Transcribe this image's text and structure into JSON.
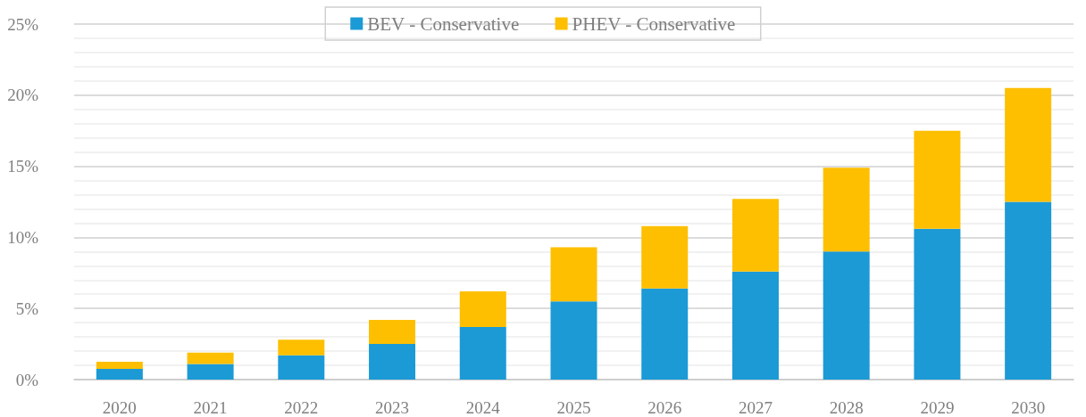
{
  "chart_data": {
    "type": "bar",
    "stacked": true,
    "categories": [
      "2020",
      "2021",
      "2022",
      "2023",
      "2024",
      "2025",
      "2026",
      "2027",
      "2028",
      "2029",
      "2030"
    ],
    "series": [
      {
        "name": "BEV - Conservative",
        "color": "#1b9ad6",
        "values": [
          0.75,
          1.1,
          1.7,
          2.5,
          3.7,
          5.5,
          6.4,
          7.6,
          9.0,
          10.6,
          12.5
        ]
      },
      {
        "name": "PHEV - Conservative",
        "color": "#fdbf00",
        "values": [
          0.5,
          0.8,
          1.1,
          1.7,
          2.5,
          3.8,
          4.4,
          5.1,
          5.9,
          6.9,
          8.0
        ]
      }
    ],
    "ylim": [
      0,
      25
    ],
    "yticks": [
      {
        "value": 0,
        "label": "0%"
      },
      {
        "value": 5,
        "label": "5%"
      },
      {
        "value": 10,
        "label": "10%"
      },
      {
        "value": 15,
        "label": "15%"
      },
      {
        "value": 20,
        "label": "20%"
      },
      {
        "value": 25,
        "label": "25%"
      }
    ],
    "grid": "y",
    "legend": "top"
  }
}
